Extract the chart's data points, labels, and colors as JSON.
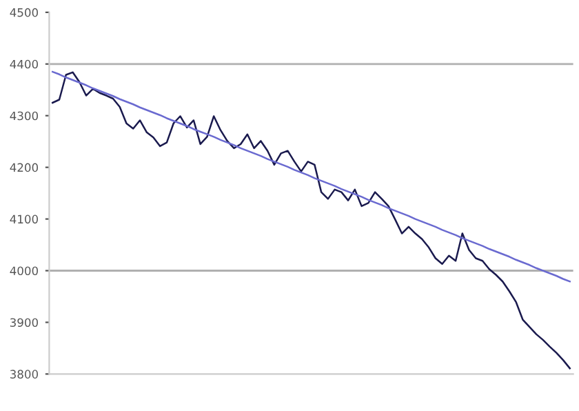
{
  "chart_data": {
    "type": "line",
    "categories": [
      null,
      null,
      null,
      null,
      null,
      null,
      null,
      null,
      null,
      null,
      null,
      null,
      null,
      null,
      null,
      null,
      null,
      null,
      null,
      null,
      null,
      null,
      null,
      null,
      null,
      null,
      null,
      null,
      null,
      null,
      null,
      null,
      null,
      null,
      null,
      null,
      null,
      null,
      null,
      null,
      null,
      null,
      null,
      null,
      null,
      null,
      null,
      null,
      null,
      null,
      null,
      null,
      null,
      null,
      null,
      null,
      null,
      null,
      null,
      null,
      null,
      null,
      null,
      null,
      null,
      null,
      null,
      null,
      null,
      null,
      null,
      null,
      null,
      null,
      null,
      null,
      null,
      null
    ],
    "ylim": [
      3800,
      4500
    ],
    "yticks": [
      3800,
      3900,
      4000,
      4100,
      4200,
      4300,
      4400,
      4500
    ],
    "tick_labels": "y",
    "marker": "none",
    "ref_lines": [
      {
        "axis": "y",
        "value": 4400,
        "color": "#b0b0b0"
      },
      {
        "axis": "y",
        "value": 4000,
        "color": "#b0b0b0"
      }
    ],
    "series": [
      {
        "color": "#1a1a4e",
        "values": [
          4325,
          4331,
          4379,
          4384,
          4365,
          4339,
          4352,
          4344,
          4339,
          4333,
          4317,
          4285,
          4275,
          4291,
          4268,
          4258,
          4241,
          4248,
          4285,
          4299,
          4277,
          4291,
          4245,
          4259,
          4299,
          4272,
          4251,
          4237,
          4245,
          4264,
          4237,
          4251,
          4232,
          4205,
          4227,
          4232,
          4211,
          4192,
          4211,
          4205,
          4152,
          4139,
          4157,
          4152,
          4136,
          4157,
          4125,
          4131,
          4152,
          4139,
          4125,
          4099,
          4072,
          4085,
          4072,
          4061,
          4045,
          4024,
          4013,
          4029,
          4019,
          4072,
          4040,
          4024,
          4019,
          4003,
          3992,
          3979,
          3960,
          3939,
          3905,
          3891,
          3877,
          3866,
          3853,
          3841,
          3827,
          3811
        ]
      },
      {
        "color": "#6a6ad0",
        "values": [
          4385,
          4380,
          4374,
          4369,
          4364,
          4359,
          4353,
          4348,
          4343,
          4338,
          4332,
          4327,
          4322,
          4316,
          4311,
          4306,
          4301,
          4295,
          4290,
          4285,
          4280,
          4274,
          4269,
          4264,
          4259,
          4253,
          4248,
          4243,
          4237,
          4232,
          4227,
          4222,
          4216,
          4211,
          4206,
          4201,
          4195,
          4190,
          4185,
          4179,
          4174,
          4169,
          4164,
          4158,
          4153,
          4148,
          4143,
          4137,
          4132,
          4127,
          4121,
          4116,
          4111,
          4106,
          4100,
          4095,
          4090,
          4085,
          4079,
          4074,
          4069,
          4063,
          4058,
          4053,
          4048,
          4042,
          4037,
          4032,
          4027,
          4021,
          4016,
          4011,
          4005,
          4000,
          3995,
          3990,
          3984,
          3979
        ]
      }
    ]
  }
}
